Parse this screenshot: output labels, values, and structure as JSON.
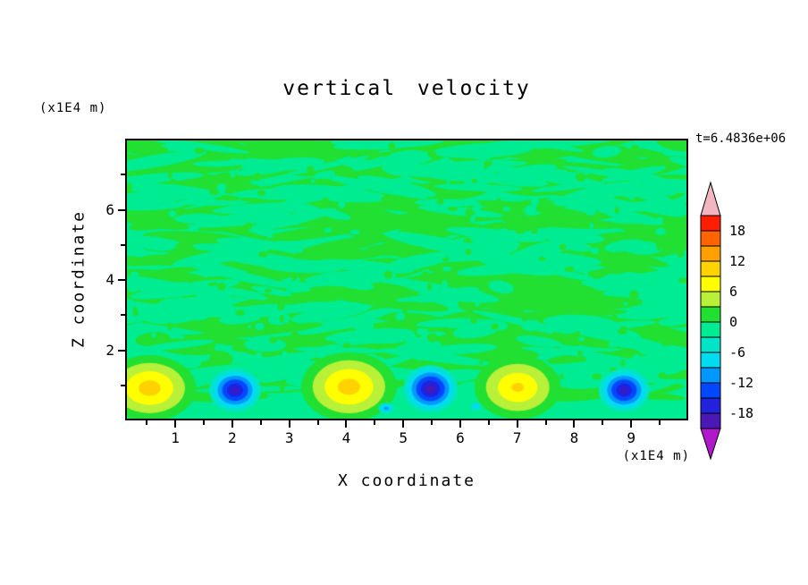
{
  "chart_data": {
    "type": "heatmap",
    "title": "vertical velocity",
    "xlabel": "X coordinate",
    "ylabel": "Z coordinate",
    "x_unit": "(x1E4 m)",
    "y_unit": "(x1E4 m)",
    "time_label": "t=6.4836e+06",
    "x_range": [
      0.12,
      10.0
    ],
    "z_range": [
      0,
      8.03
    ],
    "x_major_ticks": [
      1,
      2,
      3,
      4,
      5,
      6,
      7,
      8,
      9
    ],
    "x_minor_step": 0.5,
    "z_major_ticks": [
      2,
      4,
      6
    ],
    "z_minor_ticks": [
      1,
      3,
      5,
      7
    ],
    "contour_interval": 3,
    "grid": false,
    "colorbar": {
      "position": "right",
      "labels": [
        "18",
        "12",
        "6",
        "0",
        "-6",
        "-12",
        "-18"
      ],
      "label_values": [
        18,
        12,
        6,
        0,
        -6,
        -12,
        -18
      ],
      "levels": [
        -21,
        -18,
        -15,
        -12,
        -9,
        -6,
        -3,
        0,
        3,
        6,
        9,
        12,
        15,
        18,
        21
      ],
      "band_colors_top_to_bottom": [
        "#ff1e00",
        "#ff6400",
        "#ffa000",
        "#ffd200",
        "#ffff00",
        "#b9f038",
        "#22e032",
        "#00ec92",
        "#00e4c8",
        "#00dcf0",
        "#0098ff",
        "#0048ff",
        "#2222dd",
        "#4a18b4"
      ],
      "over_color": "#f2b6c2",
      "under_color": "#b018cc"
    },
    "field": {
      "description": "near-zero mottled vertical-velocity field with alternating updraft (yellow) and downdraft (blue) cells along the lower boundary",
      "base_color": "#00ec92",
      "mottle_color": "#22e032",
      "positive_colors": [
        "#22e032",
        "#b9f038",
        "#ffff00",
        "#ffd200",
        "#ffa000"
      ],
      "negative_colors": [
        "#00e4c8",
        "#00dcf0",
        "#0098ff",
        "#0048ff",
        "#2222dd",
        "#4a18b4"
      ],
      "updrafts": [
        {
          "x": 0.52,
          "z": 0.88,
          "rx": 0.82,
          "rz": 0.95,
          "peak": 11
        },
        {
          "x": 4.04,
          "z": 0.92,
          "rx": 0.84,
          "rz": 1.0,
          "peak": 11
        },
        {
          "x": 7.02,
          "z": 0.9,
          "rx": 0.76,
          "rz": 0.92,
          "peak": 10
        }
      ],
      "downdrafts": [
        {
          "x": 2.03,
          "z": 0.82,
          "rx": 0.46,
          "rz": 0.62,
          "peak": -16
        },
        {
          "x": 5.48,
          "z": 0.86,
          "rx": 0.48,
          "rz": 0.68,
          "peak": -17
        },
        {
          "x": 8.9,
          "z": 0.82,
          "rx": 0.45,
          "rz": 0.62,
          "peak": -16
        },
        {
          "x": 4.7,
          "z": 0.3,
          "rx": 0.14,
          "rz": 0.16,
          "peak": -8
        },
        {
          "x": 6.28,
          "z": 0.35,
          "rx": 0.1,
          "rz": 0.12,
          "peak": -6
        }
      ]
    }
  }
}
